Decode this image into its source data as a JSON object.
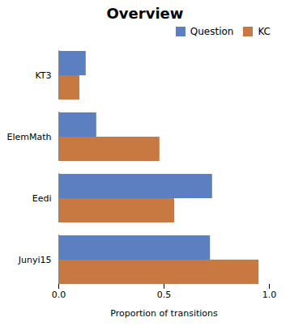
{
  "chart_data": {
    "type": "bar",
    "orientation": "horizontal",
    "title": "Overview",
    "categories": [
      "Junyi15",
      "Eedi",
      "ElemMath",
      "KT3"
    ],
    "series": [
      {
        "name": "Question",
        "color": "#5b7fc0",
        "values": [
          0.72,
          0.73,
          0.18,
          0.13
        ]
      },
      {
        "name": "KC",
        "color": "#c87941",
        "values": [
          0.95,
          0.55,
          0.48,
          0.1
        ]
      }
    ],
    "xlabel": "Proportion of transitions",
    "xlim": [
      0.0,
      1.0
    ],
    "xticks": [
      {
        "value": 0.0,
        "label": "0.0"
      },
      0.5,
      {
        "value": 1.0,
        "label": "1.0"
      }
    ],
    "legend": "upper right",
    "grid": false
  }
}
